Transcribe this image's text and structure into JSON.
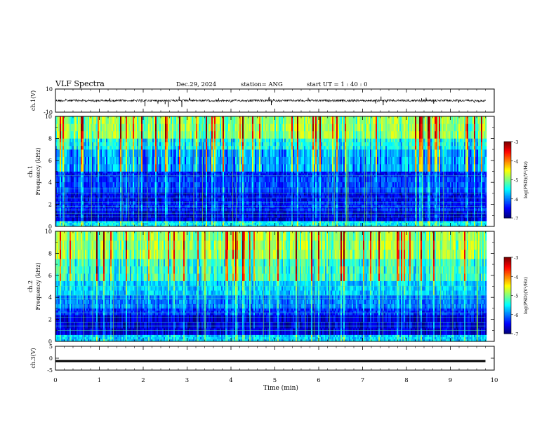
{
  "header": {
    "title": "VLF Spectra",
    "date": "Dec.29, 2024",
    "station": "station= ANG",
    "start": "start  UT =   1 : 40 : 0"
  },
  "chart_data": [
    {
      "type": "line",
      "panel": "ch1-waveform",
      "ylabel": "ch.1(V)",
      "ylim": [
        -10,
        10
      ],
      "yticks": [
        "10",
        "-10"
      ],
      "xlim": [
        0,
        9.8
      ],
      "baseline": 0,
      "spikes": [
        {
          "x": 2.04,
          "y": -4.8
        },
        {
          "x": 2.5,
          "y": -3.0
        },
        {
          "x": 2.57,
          "y": -5.5
        },
        {
          "x": 2.82,
          "y": 3.5
        },
        {
          "x": 2.88,
          "y": -5.5
        },
        {
          "x": 4.87,
          "y": 3.2
        },
        {
          "x": 4.92,
          "y": -4.0
        },
        {
          "x": 7.42,
          "y": 3.5
        },
        {
          "x": 7.47,
          "y": -4.0
        },
        {
          "x": 7.3,
          "y": -2.5
        },
        {
          "x": 8.62,
          "y": -2.6
        }
      ],
      "color": "#000000"
    },
    {
      "type": "heatmap",
      "panel": "ch1-spectrogram",
      "ylabel_lines": [
        "ch.1",
        "Frequency  (kHz)"
      ],
      "ylim": [
        0,
        10
      ],
      "yticks": [
        "0",
        "2",
        "4",
        "6",
        "8",
        "10"
      ],
      "xlim": [
        0,
        9.8
      ],
      "colorbar": {
        "label": "log(PSD)(V²/Hz)",
        "range": [
          -7,
          -3
        ],
        "ticks": [
          "-3",
          "-4",
          "-5",
          "-6",
          "-7"
        ]
      }
    },
    {
      "type": "heatmap",
      "panel": "ch2-spectrogram",
      "ylabel_lines": [
        "ch.2",
        "Frequency  (kHz)"
      ],
      "ylim": [
        0,
        10
      ],
      "yticks": [
        "0",
        "2",
        "4",
        "6",
        "8",
        "10"
      ],
      "xlim": [
        0,
        9.8
      ],
      "colorbar": {
        "label": "log(PSD)(V²/Hz)",
        "range": [
          -7,
          -3
        ],
        "ticks": [
          "-3",
          "-4",
          "-5",
          "-6",
          "-7"
        ]
      }
    },
    {
      "type": "line",
      "panel": "ch3-waveform",
      "ylabel": "ch.3(V)",
      "ylim": [
        -5,
        5
      ],
      "yticks": [
        "5",
        "0",
        "-5"
      ],
      "xlim": [
        0,
        9.8
      ],
      "baseline": -1.2,
      "color": "#000000"
    }
  ],
  "xaxis": {
    "label": "Time  (min)",
    "ticks": [
      "0",
      "1",
      "2",
      "3",
      "4",
      "5",
      "6",
      "7",
      "8",
      "9",
      "10"
    ],
    "range": [
      0,
      10
    ]
  }
}
